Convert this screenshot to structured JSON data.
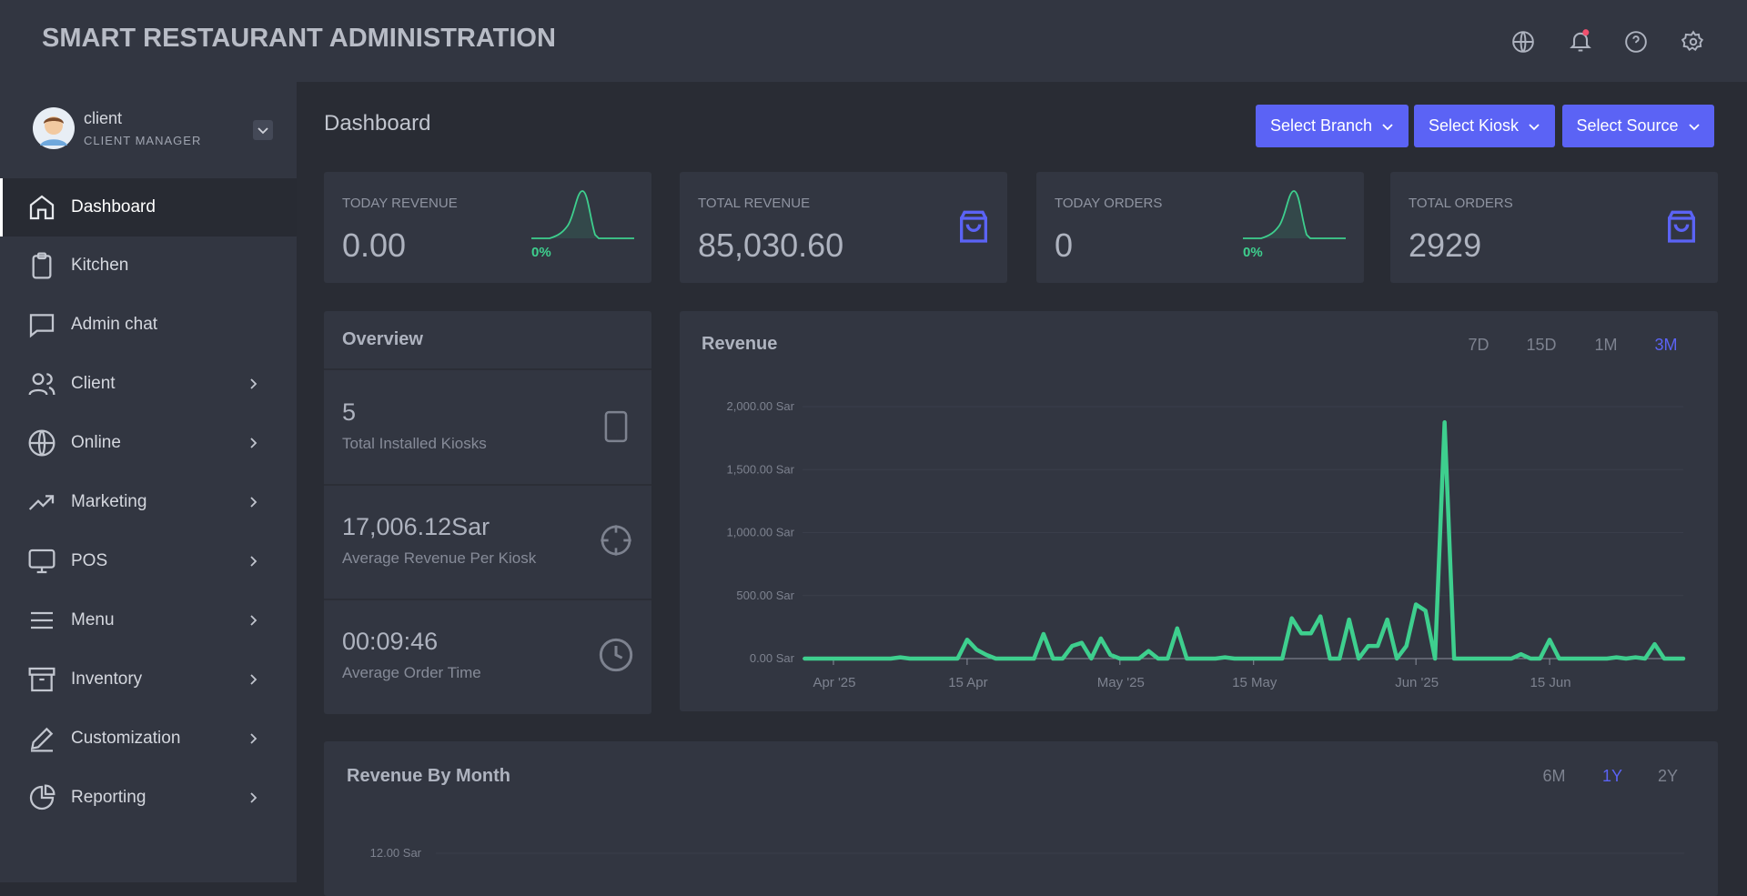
{
  "header": {
    "title": "SMART RESTAURANT ADMINISTRATION"
  },
  "user": {
    "name": "client",
    "role": "CLIENT MANAGER"
  },
  "menu": [
    "Dashboard",
    "Kitchen",
    "Admin chat",
    "Client",
    "Online",
    "Marketing",
    "POS",
    "Menu",
    "Inventory",
    "Customization",
    "Reporting"
  ],
  "page_title": "Dashboard",
  "filters": [
    "Select Branch",
    "Select Kiosk",
    "Select Source"
  ],
  "stats": [
    {
      "label": "TODAY REVENUE",
      "value": "0.00",
      "change": "0%"
    },
    {
      "label": "TOTAL REVENUE",
      "value": "85,030.60"
    },
    {
      "label": "TODAY ORDERS",
      "value": "0",
      "change": "0%"
    },
    {
      "label": "TOTAL ORDERS",
      "value": "2929"
    }
  ],
  "overview": {
    "title": "Overview",
    "items": [
      {
        "value": "5",
        "label": "Total Installed Kiosks"
      },
      {
        "value": "17,006.12Sar",
        "label": "Average Revenue Per Kiosk"
      },
      {
        "value": "00:09:46",
        "label": "Average Order Time"
      }
    ]
  },
  "revenue_chart": {
    "type": "line",
    "title": "Revenue",
    "periods": [
      "7D",
      "15D",
      "1M",
      "3M"
    ],
    "active_period": "3M",
    "x": [
      "2025-03-29",
      "2025-03-30",
      "2025-03-31",
      "2025-04-01",
      "2025-04-02",
      "2025-04-03",
      "2025-04-04",
      "2025-04-05",
      "2025-04-06",
      "2025-04-07",
      "2025-04-08",
      "2025-04-09",
      "2025-04-10",
      "2025-04-11",
      "2025-04-12",
      "2025-04-13",
      "2025-04-14",
      "2025-04-15",
      "2025-04-16",
      "2025-04-17",
      "2025-04-18",
      "2025-04-19",
      "2025-04-20",
      "2025-04-21",
      "2025-04-22",
      "2025-04-23",
      "2025-04-24",
      "2025-04-25",
      "2025-04-26",
      "2025-04-27",
      "2025-04-28",
      "2025-04-29",
      "2025-04-30",
      "2025-05-01",
      "2025-05-02",
      "2025-05-03",
      "2025-05-04",
      "2025-05-05",
      "2025-05-06",
      "2025-05-07",
      "2025-05-08",
      "2025-05-09",
      "2025-05-10",
      "2025-05-11",
      "2025-05-12",
      "2025-05-13",
      "2025-05-14",
      "2025-05-15",
      "2025-05-16",
      "2025-05-17",
      "2025-05-18",
      "2025-05-19",
      "2025-05-20",
      "2025-05-21",
      "2025-05-22",
      "2025-05-23",
      "2025-05-24",
      "2025-05-25",
      "2025-05-26",
      "2025-05-27",
      "2025-05-28",
      "2025-05-29",
      "2025-05-30",
      "2025-05-31",
      "2025-06-01",
      "2025-06-02",
      "2025-06-03",
      "2025-06-04",
      "2025-06-05",
      "2025-06-06",
      "2025-06-07",
      "2025-06-08",
      "2025-06-09",
      "2025-06-10",
      "2025-06-11",
      "2025-06-12",
      "2025-06-13",
      "2025-06-14",
      "2025-06-15",
      "2025-06-16",
      "2025-06-17",
      "2025-06-18",
      "2025-06-19",
      "2025-06-20",
      "2025-06-21",
      "2025-06-22",
      "2025-06-23",
      "2025-06-24",
      "2025-06-25",
      "2025-06-26",
      "2025-06-27",
      "2025-06-28",
      "2025-06-29"
    ],
    "color": "#3ecf8e",
    "values": [
      0,
      0,
      0,
      0,
      0,
      0,
      0,
      0,
      0,
      0,
      10,
      0,
      0,
      0,
      0,
      0,
      0,
      150,
      70,
      30,
      0,
      0,
      0,
      0,
      0,
      195,
      0,
      0,
      100,
      125,
      0,
      160,
      30,
      0,
      0,
      0,
      60,
      0,
      0,
      240,
      0,
      0,
      0,
      0,
      10,
      0,
      0,
      0,
      0,
      0,
      0,
      320,
      200,
      200,
      335,
      0,
      0,
      310,
      0,
      100,
      100,
      310,
      0,
      100,
      430,
      380,
      0,
      1875,
      0,
      0,
      0,
      0,
      0,
      0,
      0,
      35,
      0,
      0,
      150,
      0,
      0,
      0,
      0,
      0,
      0,
      10,
      0,
      10,
      0,
      115,
      0,
      0,
      0
    ],
    "ylim": [
      0,
      2000
    ],
    "yticks": [
      {
        "value": 0,
        "label": "0.00 Sar"
      },
      {
        "value": 500,
        "label": "500.00 Sar"
      },
      {
        "value": 1000,
        "label": "1,000.00 Sar"
      },
      {
        "value": 1500,
        "label": "1,500.00 Sar"
      },
      {
        "value": 2000,
        "label": "2,000.00 Sar"
      }
    ],
    "xticks": [
      {
        "value": "2025-04-01",
        "label": "Apr '25"
      },
      {
        "value": "2025-04-15",
        "label": "15 Apr"
      },
      {
        "value": "2025-05-01",
        "label": "May '25"
      },
      {
        "value": "2025-05-15",
        "label": "15 May"
      },
      {
        "value": "2025-06-01",
        "label": "Jun '25"
      },
      {
        "value": "2025-06-15",
        "label": "15 Jun"
      }
    ],
    "grid": true
  },
  "revenue_by_month": {
    "title": "Revenue By Month",
    "periods": [
      "6M",
      "1Y",
      "2Y"
    ],
    "active_period": "1Y",
    "yticks": [
      {
        "value": 12,
        "label": "12.00 Sar"
      }
    ],
    "grid": true
  }
}
